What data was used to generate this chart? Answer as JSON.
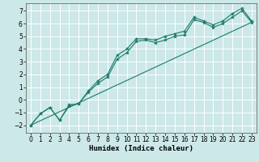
{
  "xlabel": "Humidex (Indice chaleur)",
  "bg_color": "#cce8e8",
  "grid_color": "#ffffff",
  "line_color": "#1a7a6a",
  "xlim": [
    -0.5,
    23.5
  ],
  "ylim": [
    -2.6,
    7.6
  ],
  "xticks": [
    0,
    1,
    2,
    3,
    4,
    5,
    6,
    7,
    8,
    9,
    10,
    11,
    12,
    13,
    14,
    15,
    16,
    17,
    18,
    19,
    20,
    21,
    22,
    23
  ],
  "yticks": [
    -2,
    -1,
    0,
    1,
    2,
    3,
    4,
    5,
    6,
    7
  ],
  "line1_x": [
    0,
    1,
    2,
    3,
    4,
    5,
    6,
    7,
    8,
    9,
    10,
    11,
    12,
    13,
    14,
    15,
    16,
    17,
    18,
    19,
    20,
    21,
    22,
    23
  ],
  "line1_y": [
    -2.0,
    -1.1,
    -0.6,
    -1.6,
    -0.4,
    -0.3,
    0.6,
    1.3,
    1.8,
    3.2,
    3.7,
    4.6,
    4.7,
    4.5,
    4.7,
    5.0,
    5.1,
    6.3,
    6.1,
    5.7,
    6.0,
    6.5,
    7.0,
    6.1
  ],
  "line2_x": [
    0,
    1,
    2,
    3,
    4,
    5,
    6,
    7,
    8,
    9,
    10,
    11,
    12,
    13,
    14,
    15,
    16,
    17,
    18,
    19,
    20,
    21,
    22,
    23
  ],
  "line2_y": [
    -2.0,
    -1.1,
    -0.6,
    -1.6,
    -0.5,
    -0.3,
    0.7,
    1.5,
    2.0,
    3.5,
    4.0,
    4.8,
    4.8,
    4.7,
    5.0,
    5.2,
    5.4,
    6.5,
    6.2,
    5.9,
    6.2,
    6.8,
    7.2,
    6.2
  ],
  "line3_x": [
    0,
    23
  ],
  "line3_y": [
    -2.0,
    6.1
  ],
  "tick_fontsize": 5.5,
  "xlabel_fontsize": 6.5
}
